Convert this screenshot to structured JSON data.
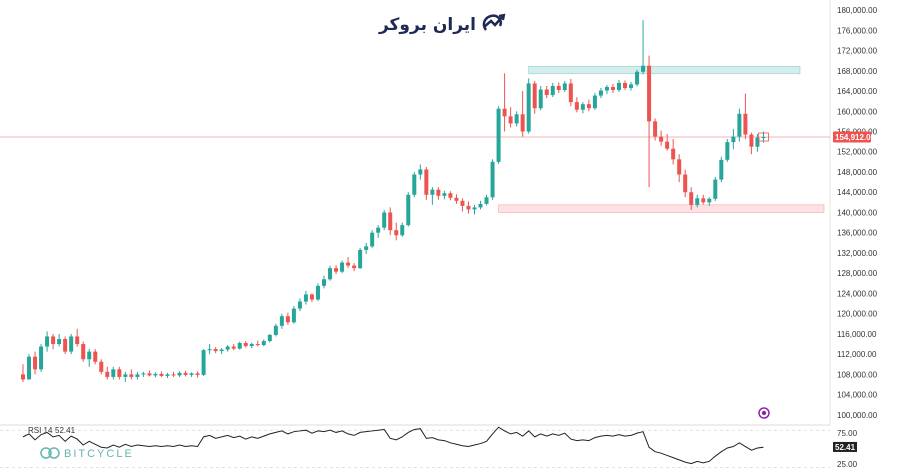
{
  "brand": {
    "logo_text": "ایران بروکر",
    "watermark_text": "BITCYCLE"
  },
  "colors": {
    "up": "#26a69a",
    "down": "#ef5350",
    "price_line": "#f19aa0",
    "resistance_zone": "#b2dfdb",
    "support_zone": "#ffcdd2",
    "rsi_line": "#222222",
    "logo_accent": "#1e2a55",
    "purple_marker": "#8e24aa"
  },
  "chart_data": {
    "type": "candlestick",
    "y_axis": {
      "ylim": [
        98000,
        181000
      ],
      "tick_labels": [
        "180,000.00",
        "176,000.00",
        "172,000.00",
        "168,000.00",
        "164,000.00",
        "160,000.00",
        "156,000.00",
        "152,000.00",
        "148,000.00",
        "144,000.00",
        "140,000.00",
        "136,000.00",
        "132,000.00",
        "128,000.00",
        "124,000.00",
        "120,000.00",
        "116,000.00",
        "112,000.00",
        "108,000.00",
        "104,000.00",
        "100,000.00"
      ],
      "tick_values": [
        180000,
        176000,
        172000,
        168000,
        164000,
        160000,
        156000,
        152000,
        148000,
        144000,
        140000,
        136000,
        132000,
        128000,
        124000,
        120000,
        116000,
        112000,
        108000,
        104000,
        100000
      ]
    },
    "current_price": {
      "value": 154912,
      "label": "154,912.00"
    },
    "zones": [
      {
        "name": "resistance",
        "low": 167400,
        "high": 168900
      },
      {
        "name": "support",
        "low": 140000,
        "high": 141500
      }
    ],
    "candles": [
      [
        108.0,
        110.0,
        106.5,
        107.0
      ],
      [
        107.0,
        112.0,
        107.0,
        111.5
      ],
      [
        111.5,
        112.5,
        108.0,
        109.0
      ],
      [
        109.0,
        114.0,
        108.5,
        113.5
      ],
      [
        113.5,
        116.5,
        112.5,
        115.5
      ],
      [
        115.5,
        116.0,
        113.0,
        114.0
      ],
      [
        114.0,
        116.0,
        113.5,
        115.0
      ],
      [
        115.0,
        115.5,
        112.0,
        112.5
      ],
      [
        112.5,
        116.0,
        112.0,
        115.5
      ],
      [
        115.5,
        117.0,
        113.5,
        114.0
      ],
      [
        114.0,
        114.5,
        110.5,
        111.0
      ],
      [
        111.0,
        113.0,
        109.5,
        112.5
      ],
      [
        112.5,
        113.0,
        110.0,
        110.5
      ],
      [
        110.5,
        111.0,
        108.0,
        108.5
      ],
      [
        108.5,
        109.5,
        107.0,
        107.5
      ],
      [
        107.5,
        109.5,
        107.0,
        109.0
      ],
      [
        109.0,
        109.5,
        107.0,
        107.5
      ],
      [
        107.5,
        108.5,
        106.5,
        108.0
      ],
      [
        108.0,
        109.0,
        107.0,
        107.5
      ],
      [
        107.5,
        108.5,
        107.0,
        108.0
      ],
      [
        108.0,
        108.5,
        107.5,
        108.2
      ],
      [
        108.2,
        108.8,
        107.6,
        107.8
      ],
      [
        107.8,
        108.4,
        107.4,
        108.1
      ],
      [
        108.1,
        108.6,
        107.5,
        107.7
      ],
      [
        107.7,
        108.3,
        107.3,
        108.0
      ],
      [
        108.0,
        108.5,
        107.5,
        107.8
      ],
      [
        107.8,
        108.6,
        107.5,
        108.3
      ],
      [
        108.3,
        108.7,
        107.6,
        107.9
      ],
      [
        107.9,
        108.4,
        107.5,
        108.2
      ],
      [
        108.2,
        108.6,
        107.4,
        107.9
      ],
      [
        107.9,
        113.0,
        107.7,
        112.8
      ],
      [
        112.8,
        114.0,
        112.0,
        113.0
      ],
      [
        113.0,
        113.4,
        112.2,
        112.6
      ],
      [
        112.6,
        113.2,
        112.0,
        112.9
      ],
      [
        112.9,
        113.8,
        112.5,
        113.5
      ],
      [
        113.5,
        114.0,
        112.8,
        113.1
      ],
      [
        113.1,
        114.5,
        112.9,
        114.2
      ],
      [
        114.2,
        114.6,
        113.3,
        113.6
      ],
      [
        113.6,
        114.3,
        113.2,
        114.0
      ],
      [
        114.0,
        114.7,
        113.5,
        113.8
      ],
      [
        113.8,
        114.9,
        113.6,
        114.6
      ],
      [
        114.6,
        116.0,
        114.3,
        115.8
      ],
      [
        115.8,
        118.0,
        115.5,
        117.6
      ],
      [
        117.6,
        120.0,
        117.0,
        119.5
      ],
      [
        119.5,
        120.2,
        117.8,
        118.3
      ],
      [
        118.3,
        121.5,
        118.0,
        121.0
      ],
      [
        121.0,
        123.0,
        120.5,
        122.4
      ],
      [
        122.4,
        124.5,
        121.8,
        123.8
      ],
      [
        123.8,
        124.0,
        122.3,
        122.8
      ],
      [
        122.8,
        126.0,
        122.5,
        125.5
      ],
      [
        125.5,
        127.5,
        125.0,
        126.8
      ],
      [
        126.8,
        129.5,
        126.5,
        129.0
      ],
      [
        129.0,
        129.6,
        127.8,
        128.3
      ],
      [
        128.3,
        130.5,
        128.0,
        130.1
      ],
      [
        130.1,
        131.2,
        129.0,
        129.5
      ],
      [
        129.5,
        130.0,
        128.4,
        129.0
      ],
      [
        129.0,
        133.0,
        128.8,
        132.6
      ],
      [
        132.6,
        134.0,
        131.8,
        133.3
      ],
      [
        133.3,
        136.5,
        133.0,
        136.0
      ],
      [
        136.0,
        137.5,
        135.0,
        137.0
      ],
      [
        137.0,
        140.5,
        136.5,
        140.0
      ],
      [
        140.0,
        141.0,
        135.5,
        136.5
      ],
      [
        136.5,
        138.0,
        134.5,
        135.5
      ],
      [
        135.5,
        138.0,
        135.2,
        137.5
      ],
      [
        137.5,
        144.0,
        137.2,
        143.5
      ],
      [
        143.5,
        148.0,
        143.0,
        147.5
      ],
      [
        147.5,
        149.5,
        146.5,
        148.5
      ],
      [
        148.5,
        149.0,
        142.5,
        143.5
      ],
      [
        143.5,
        145.0,
        141.5,
        144.5
      ],
      [
        144.5,
        145.0,
        142.5,
        143.3
      ],
      [
        143.3,
        144.3,
        142.6,
        143.8
      ],
      [
        143.8,
        144.2,
        142.4,
        142.9
      ],
      [
        142.9,
        143.6,
        141.7,
        142.3
      ],
      [
        142.3,
        142.8,
        140.2,
        141.3
      ],
      [
        141.3,
        142.2,
        139.8,
        140.6
      ],
      [
        140.6,
        141.5,
        139.6,
        141.0
      ],
      [
        141.0,
        142.3,
        140.6,
        141.7
      ],
      [
        141.7,
        143.5,
        141.4,
        143.0
      ],
      [
        143.0,
        150.5,
        142.5,
        150.0
      ],
      [
        150.0,
        161.0,
        149.6,
        160.5
      ],
      [
        160.5,
        167.5,
        156.0,
        159.0
      ],
      [
        159.0,
        160.8,
        156.8,
        157.6
      ],
      [
        157.6,
        160.0,
        157.0,
        159.4
      ],
      [
        159.4,
        164.0,
        155.0,
        156.0
      ],
      [
        156.0,
        166.5,
        155.6,
        165.5
      ],
      [
        165.5,
        166.0,
        159.5,
        160.6
      ],
      [
        160.6,
        165.0,
        160.2,
        164.3
      ],
      [
        164.3,
        165.0,
        162.6,
        163.2
      ],
      [
        163.2,
        165.6,
        162.8,
        165.0
      ],
      [
        165.0,
        165.7,
        163.6,
        164.2
      ],
      [
        164.2,
        166.0,
        163.8,
        165.5
      ],
      [
        165.5,
        166.4,
        161.0,
        161.8
      ],
      [
        161.8,
        162.8,
        159.8,
        160.3
      ],
      [
        160.3,
        161.8,
        159.6,
        161.4
      ],
      [
        161.4,
        162.3,
        160.0,
        160.6
      ],
      [
        160.6,
        163.6,
        160.3,
        163.1
      ],
      [
        163.1,
        164.6,
        162.6,
        164.1
      ],
      [
        164.1,
        165.2,
        163.4,
        164.8
      ],
      [
        164.8,
        165.4,
        163.6,
        164.2
      ],
      [
        164.2,
        166.2,
        163.8,
        165.6
      ],
      [
        165.6,
        166.1,
        164.2,
        164.6
      ],
      [
        164.6,
        165.8,
        164.1,
        165.3
      ],
      [
        165.3,
        168.2,
        164.9,
        167.8
      ],
      [
        167.8,
        178.0,
        167.3,
        169.0
      ],
      [
        169.0,
        171.0,
        145.0,
        158.0
      ],
      [
        158.0,
        158.6,
        154.2,
        155.0
      ],
      [
        155.0,
        156.2,
        153.2,
        154.0
      ],
      [
        154.0,
        155.5,
        152.2,
        152.6
      ],
      [
        152.6,
        154.5,
        149.5,
        150.5
      ],
      [
        150.5,
        151.5,
        146.0,
        147.5
      ],
      [
        147.5,
        148.5,
        143.0,
        144.0
      ],
      [
        144.0,
        145.0,
        140.5,
        141.5
      ],
      [
        141.5,
        143.5,
        141.0,
        142.8
      ],
      [
        142.8,
        143.5,
        141.6,
        142.0
      ],
      [
        142.0,
        143.0,
        141.3,
        142.7
      ],
      [
        142.7,
        147.0,
        142.3,
        146.5
      ],
      [
        146.5,
        151.0,
        146.0,
        150.4
      ],
      [
        150.4,
        154.5,
        150.0,
        153.9
      ],
      [
        153.9,
        156.5,
        152.5,
        155.0
      ],
      [
        155.0,
        160.5,
        154.0,
        159.5
      ],
      [
        159.5,
        163.5,
        154.5,
        155.4
      ],
      [
        155.4,
        155.8,
        151.5,
        153.0
      ],
      [
        153.0,
        155.5,
        152.0,
        154.8
      ],
      [
        154.8,
        156.0,
        153.8,
        154.9
      ]
    ],
    "rsi": {
      "label": "RSI 14",
      "value": 52.41,
      "value_label": "52.41",
      "levels": [
        75,
        25
      ],
      "level_labels": [
        "75.00",
        "25.00"
      ],
      "ylim": [
        20,
        82
      ],
      "values": [
        66,
        70,
        62,
        69,
        72,
        66,
        68,
        60,
        67,
        63,
        55,
        60,
        56,
        52,
        51,
        55,
        52,
        56,
        53,
        55,
        54,
        53,
        54,
        53,
        54,
        53,
        55,
        53,
        54,
        53,
        66,
        68,
        64,
        66,
        68,
        65,
        67,
        63,
        66,
        64,
        67,
        70,
        72,
        74,
        70,
        73,
        74,
        75,
        71,
        74,
        73,
        75,
        72,
        74,
        70,
        68,
        72,
        73,
        74,
        75,
        76,
        64,
        62,
        66,
        72,
        76,
        77,
        64,
        65,
        62,
        61,
        58,
        56,
        54,
        53,
        55,
        57,
        60,
        70,
        79,
        74,
        70,
        72,
        67,
        74,
        66,
        70,
        67,
        70,
        68,
        71,
        63,
        61,
        62,
        61,
        65,
        67,
        68,
        67,
        69,
        67,
        68,
        71,
        73,
        52,
        46,
        44,
        41,
        38,
        35,
        32,
        30,
        33,
        31,
        33,
        40,
        46,
        51,
        53,
        58,
        53,
        48,
        51,
        52
      ]
    }
  }
}
